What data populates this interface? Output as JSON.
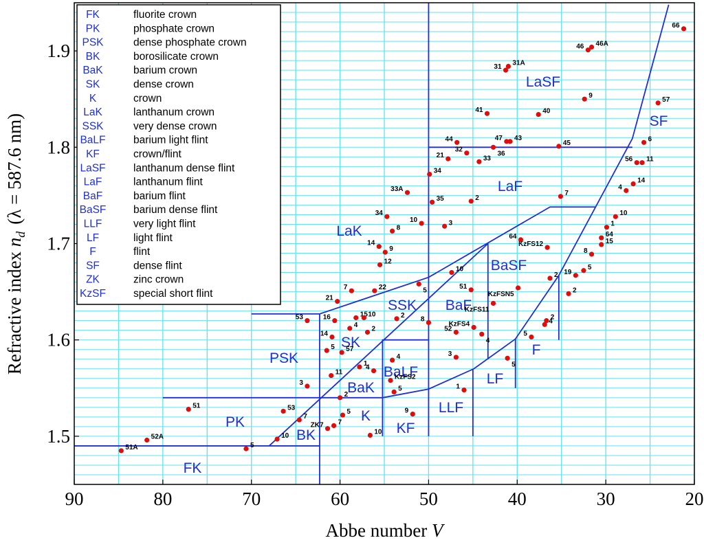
{
  "chart_data": {
    "type": "scatter",
    "xlabel": "Abbe number ",
    "xlabel_var": "V",
    "ylabel": "Refractive index ",
    "ylabel_var": "n",
    "ylabel_sub": "d",
    "ylabel_unit": "(λ = 587.6 nm)",
    "xlim": [
      90,
      20
    ],
    "ylim": [
      1.45,
      1.95
    ],
    "xticks": [
      90,
      80,
      70,
      60,
      50,
      40,
      30,
      20
    ],
    "yticks": [
      1.5,
      1.6,
      1.7,
      1.8,
      1.9
    ],
    "grid": true,
    "x_grid_step": 5,
    "y_grid_step": 0.01,
    "grid_color": "#5fe3ee",
    "point_color": "#e00d0d",
    "boundary_color": "#1f2fd6",
    "legend_position": "upper left",
    "legend": [
      {
        "code": "FK",
        "name": "fluorite crown"
      },
      {
        "code": "PK",
        "name": "phosphate crown"
      },
      {
        "code": "PSK",
        "name": "dense phosphate crown"
      },
      {
        "code": "BK",
        "name": "borosilicate crown"
      },
      {
        "code": "BaK",
        "name": "barium crown"
      },
      {
        "code": "SK",
        "name": "dense crown"
      },
      {
        "code": "K",
        "name": "crown"
      },
      {
        "code": "LaK",
        "name": "lanthanum crown"
      },
      {
        "code": "SSK",
        "name": "very dense crown"
      },
      {
        "code": "BaLF",
        "name": "barium light flint"
      },
      {
        "code": "KF",
        "name": "crown/flint"
      },
      {
        "code": "LaSF",
        "name": "lanthanum dense flint"
      },
      {
        "code": "LaF",
        "name": "lanthanum flint"
      },
      {
        "code": "BaF",
        "name": "barium flint"
      },
      {
        "code": "BaSF",
        "name": "barium dense flint"
      },
      {
        "code": "LLF",
        "name": "very light flint"
      },
      {
        "code": "LF",
        "name": "light flint"
      },
      {
        "code": "F",
        "name": "flint"
      },
      {
        "code": "SF",
        "name": "dense flint"
      },
      {
        "code": "ZK",
        "name": "zinc crown"
      },
      {
        "code": "KzSF",
        "name": "special short flint"
      }
    ],
    "region_labels": [
      "FK",
      "PK",
      "BK",
      "K",
      "KF",
      "LLF",
      "LF",
      "F",
      "BaK",
      "BaLF",
      "PSK",
      "SK",
      "SSK",
      "BaF",
      "BaSF",
      "SF",
      "LaF",
      "LaK",
      "LaSF"
    ],
    "boundaries": [
      {
        "x": [
          90,
          62.3
        ],
        "y": [
          1.49,
          1.49
        ]
      },
      {
        "x": [
          62.3,
          62.3
        ],
        "y": [
          1.45,
          1.627
        ]
      },
      {
        "x": [
          70,
          62.3,
          50,
          36.3,
          31.2
        ],
        "y": [
          1.627,
          1.627,
          1.665,
          1.738,
          1.738
        ]
      },
      {
        "x": [
          80,
          55.2
        ],
        "y": [
          1.54,
          1.54
        ]
      },
      {
        "x": [
          68,
          43.3
        ],
        "y": [
          1.49,
          1.7
        ]
      },
      {
        "x": [
          55.2,
          55.2,
          50
        ],
        "y": [
          1.5,
          1.6,
          1.6
        ]
      },
      {
        "x": [
          50,
          50
        ],
        "y": [
          1.5,
          1.95
        ]
      },
      {
        "x": [
          50,
          27
        ],
        "y": [
          1.8,
          1.8
        ]
      },
      {
        "x": [
          55.2,
          50,
          44.9,
          40.2,
          35.3,
          27,
          22.9
        ],
        "y": [
          1.54,
          1.549,
          1.57,
          1.601,
          1.667,
          1.809,
          1.948
        ]
      },
      {
        "x": [
          45,
          45
        ],
        "y": [
          1.5,
          1.57
        ]
      },
      {
        "x": [
          40.2,
          40.2
        ],
        "y": [
          1.55,
          1.601
        ]
      },
      {
        "x": [
          35.3,
          35.3
        ],
        "y": [
          1.6,
          1.667
        ]
      },
      {
        "x": [
          43.3,
          43.3
        ],
        "y": [
          1.58,
          1.7
        ]
      }
    ],
    "point_labels": [
      "66",
      "46A",
      "46",
      "31A",
      "31",
      "9",
      "57",
      "41",
      "40",
      "6",
      "44",
      "47",
      "43",
      "45",
      "36",
      "32",
      "21",
      "33",
      "56",
      "11",
      "34",
      "14",
      "4",
      "33A",
      "7",
      "35",
      "2",
      "34",
      "10",
      "10",
      "3",
      "8",
      "1",
      "64",
      "64",
      "KzFS12",
      "15",
      "14",
      "9",
      "8",
      "12",
      "5",
      "19",
      "10",
      "2",
      "5",
      "7",
      "22",
      "51",
      "KzFSN5",
      "2",
      "21",
      "KzFS11",
      "53",
      "16",
      "15",
      "10",
      "2",
      "8",
      "2",
      "4",
      "KzFS4",
      "4",
      "14",
      "2",
      "52",
      "4",
      "5",
      "5",
      "57",
      "4",
      "3",
      "5",
      "1",
      "4",
      "11",
      "KzFS2",
      "3",
      "5",
      "1",
      "2",
      "51",
      "53",
      "5",
      "9",
      "7",
      "7",
      "ZK7",
      "10",
      "52A",
      "10",
      "51A",
      "5"
    ],
    "x": [
      21.2,
      31.6,
      32.0,
      41.0,
      41.3,
      32.4,
      24.1,
      43.4,
      37.6,
      25.7,
      46.8,
      41.2,
      40.8,
      35.3,
      42.7,
      45.7,
      47.8,
      44.3,
      26.5,
      25.9,
      49.9,
      26.9,
      27.7,
      52.4,
      35.1,
      49.6,
      45.2,
      54.7,
      28.9,
      50.8,
      48.2,
      54.1,
      29.9,
      30.5,
      39.6,
      36.6,
      30.5,
      55.6,
      54.9,
      31.6,
      55.5,
      32.5,
      33.4,
      47.4,
      36.3,
      51.1,
      58.7,
      56.1,
      45.2,
      39.9,
      34.2,
      60.3,
      42.7,
      63.7,
      60.6,
      58.2,
      57.3,
      53.6,
      50.0,
      36.7,
      36.9,
      44.9,
      58.9,
      60.9,
      56.9,
      46.9,
      44.0,
      38.4,
      61.5,
      59.8,
      54.1,
      46.9,
      41.1,
      57.8,
      56.2,
      61.0,
      54.3,
      63.7,
      53.9,
      46.0,
      60.0,
      77.1,
      66.4,
      59.7,
      51.8,
      64.6,
      60.7,
      61.4,
      56.6,
      81.8,
      67.1,
      84.7,
      70.6
    ],
    "values": [
      1.923,
      1.904,
      1.901,
      1.884,
      1.88,
      1.85,
      1.846,
      1.835,
      1.834,
      1.805,
      1.805,
      1.806,
      1.806,
      1.801,
      1.8,
      1.794,
      1.788,
      1.785,
      1.784,
      1.784,
      1.772,
      1.762,
      1.755,
      1.753,
      1.749,
      1.743,
      1.744,
      1.728,
      1.728,
      1.721,
      1.718,
      1.713,
      1.717,
      1.706,
      1.704,
      1.696,
      1.699,
      1.697,
      1.691,
      1.689,
      1.678,
      1.672,
      1.667,
      1.67,
      1.664,
      1.658,
      1.651,
      1.651,
      1.652,
      1.654,
      1.648,
      1.64,
      1.638,
      1.62,
      1.62,
      1.623,
      1.623,
      1.622,
      1.618,
      1.62,
      1.616,
      1.613,
      1.612,
      1.603,
      1.608,
      1.608,
      1.606,
      1.603,
      1.589,
      1.587,
      1.579,
      1.582,
      1.581,
      1.572,
      1.568,
      1.563,
      1.558,
      1.552,
      1.546,
      1.548,
      1.54,
      1.528,
      1.526,
      1.522,
      1.523,
      1.517,
      1.511,
      1.508,
      1.501,
      1.496,
      1.497,
      1.485,
      1.487
    ]
  }
}
